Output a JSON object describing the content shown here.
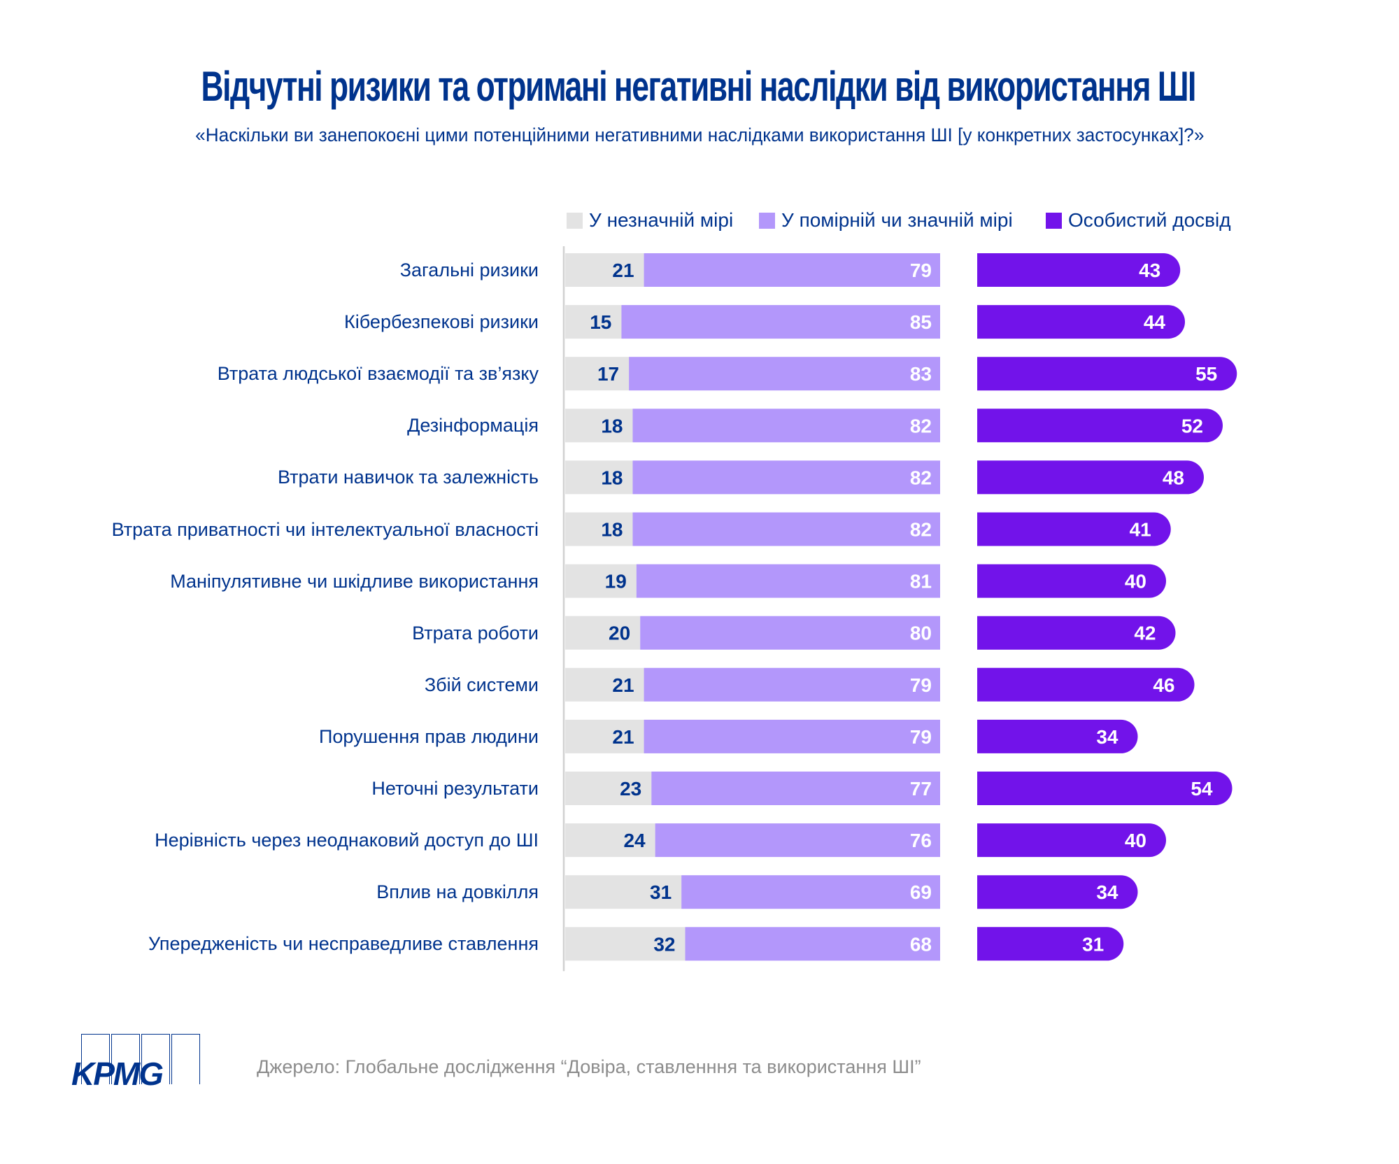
{
  "title": "Відчутні ризики та отримані негативні наслідки від використання ШІ",
  "subtitle": "«Наскільки ви занепокоєні цими потенційними негативними наслідками використання ШІ [у конкретних застосунках]?»",
  "legend": [
    {
      "label": "У незначній мірі",
      "color": "#e3e3e3"
    },
    {
      "label": "У помірній чи значній мірі",
      "color": "#b397fb"
    },
    {
      "label": "Особистий досвід",
      "color": "#7213ea"
    }
  ],
  "source": "Джерело: Глобальне дослідження “Довіра, ставленння та використання ШІ”",
  "logo": {
    "text": "KPMG"
  },
  "colors": {
    "title": "#00338D",
    "low": "#e3e3e3",
    "moderate": "#b397fb",
    "experience": "#7213ea",
    "low_label": "#00338D",
    "bar_label": "#ffffff",
    "axis": "#d0d0d0"
  },
  "chart_data": {
    "type": "bar",
    "orientation": "horizontal",
    "title": "Відчутні ризики та отримані негативні наслідки від використання ШІ",
    "subtitle": "«Наскільки ви занепокоєні цими потенційними негативними наслідками використання ШІ [у конкретних застосунках]?»",
    "unit": "%",
    "legend_position": "top",
    "grid": false,
    "categories": [
      "Загальні ризики",
      "Кібербезпекові ризики",
      "Втрата людської взаємодії та зв’язку",
      "Дезінформація",
      "Втрати навичок та залежність",
      "Втрата приватності чи інтелектуальної власності",
      "Маніпулятивне чи шкідливе використання",
      "Втрата роботи",
      "Збій системи",
      "Порушення прав людини",
      "Неточні результати",
      "Нерівність через неоднаковий доступ до ШІ",
      "Вплив на довкілля",
      "Упередженість чи несправедливе ставлення"
    ],
    "series": [
      {
        "name": "У незначній мірі",
        "stack": "concern",
        "values": [
          21,
          15,
          17,
          18,
          18,
          18,
          19,
          20,
          21,
          21,
          23,
          24,
          31,
          32
        ]
      },
      {
        "name": "У помірній чи значній мірі",
        "stack": "concern",
        "values": [
          79,
          85,
          83,
          82,
          82,
          82,
          81,
          80,
          79,
          79,
          77,
          76,
          69,
          68
        ]
      },
      {
        "name": "Особистий досвід",
        "stack": "experience",
        "values": [
          43,
          44,
          55,
          52,
          48,
          41,
          40,
          42,
          46,
          34,
          54,
          40,
          34,
          31
        ]
      }
    ],
    "xlim_concern": [
      0,
      100
    ],
    "xlim_experience": [
      0,
      100
    ]
  }
}
